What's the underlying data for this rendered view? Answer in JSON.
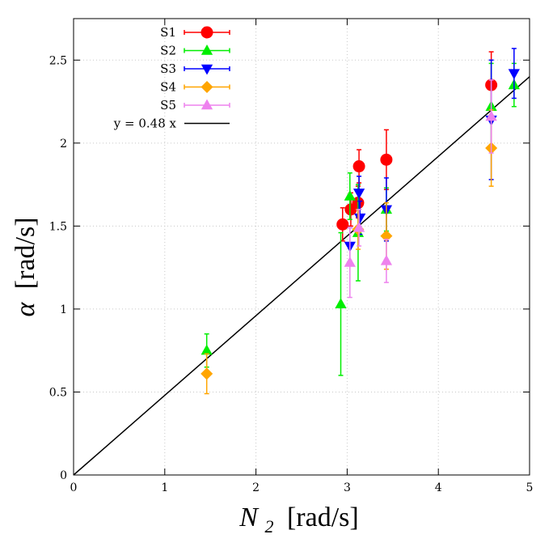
{
  "chart_data": {
    "type": "scatter",
    "xlabel_symbol": "N",
    "xlabel_subscript": "2",
    "xlabel_unit": "[rad/s]",
    "ylabel_symbol": "α",
    "ylabel_unit": "[rad/s]",
    "xlim": [
      0,
      5
    ],
    "ylim": [
      0,
      2.75
    ],
    "x_ticks": [
      0,
      1,
      2,
      3,
      4,
      5
    ],
    "y_ticks": [
      0,
      0.5,
      1,
      1.5,
      2,
      2.5
    ],
    "grid": true,
    "legend_position": "top-left",
    "series": [
      {
        "name": "S1",
        "color": "#ff0000",
        "marker": "circle",
        "points": [
          {
            "x": 2.95,
            "y": 1.51,
            "lo": 1.41,
            "hi": 1.61
          },
          {
            "x": 3.04,
            "y": 1.6,
            "lo": 1.5,
            "hi": 1.7
          },
          {
            "x": 3.12,
            "y": 1.64,
            "lo": 1.55,
            "hi": 1.74
          },
          {
            "x": 3.13,
            "y": 1.86,
            "lo": 1.76,
            "hi": 1.96
          },
          {
            "x": 3.43,
            "y": 1.9,
            "lo": 1.72,
            "hi": 2.08
          },
          {
            "x": 4.58,
            "y": 2.35,
            "lo": 2.15,
            "hi": 2.55
          }
        ]
      },
      {
        "name": "S2",
        "color": "#00ee00",
        "marker": "triangle-up",
        "points": [
          {
            "x": 1.46,
            "y": 0.75,
            "lo": 0.65,
            "hi": 0.85
          },
          {
            "x": 2.93,
            "y": 1.03,
            "lo": 0.6,
            "hi": 1.46
          },
          {
            "x": 3.03,
            "y": 1.68,
            "lo": 1.54,
            "hi": 1.82
          },
          {
            "x": 3.12,
            "y": 1.46,
            "lo": 1.17,
            "hi": 1.75
          },
          {
            "x": 3.43,
            "y": 1.6,
            "lo": 1.47,
            "hi": 1.73
          },
          {
            "x": 4.58,
            "y": 2.22,
            "lo": 1.96,
            "hi": 2.48
          },
          {
            "x": 4.83,
            "y": 2.35,
            "lo": 2.22,
            "hi": 2.48
          }
        ]
      },
      {
        "name": "S3",
        "color": "#0000ff",
        "marker": "triangle-down",
        "points": [
          {
            "x": 3.03,
            "y": 1.38,
            "lo": 1.27,
            "hi": 1.49
          },
          {
            "x": 3.13,
            "y": 1.7,
            "lo": 1.6,
            "hi": 1.8
          },
          {
            "x": 3.14,
            "y": 1.55,
            "lo": 1.45,
            "hi": 1.65
          },
          {
            "x": 3.43,
            "y": 1.6,
            "lo": 1.41,
            "hi": 1.79
          },
          {
            "x": 4.58,
            "y": 2.14,
            "lo": 1.78,
            "hi": 2.5
          },
          {
            "x": 4.83,
            "y": 2.42,
            "lo": 2.27,
            "hi": 2.57
          }
        ]
      },
      {
        "name": "S4",
        "color": "#ffa500",
        "marker": "diamond",
        "points": [
          {
            "x": 1.46,
            "y": 0.61,
            "lo": 0.49,
            "hi": 0.73
          },
          {
            "x": 3.12,
            "y": 1.48,
            "lo": 1.36,
            "hi": 1.6
          },
          {
            "x": 3.43,
            "y": 1.44,
            "lo": 1.24,
            "hi": 1.64
          },
          {
            "x": 4.58,
            "y": 1.97,
            "lo": 1.74,
            "hi": 2.2
          }
        ]
      },
      {
        "name": "S5",
        "color": "#ee82ee",
        "marker": "triangle-up",
        "points": [
          {
            "x": 3.03,
            "y": 1.28,
            "lo": 1.07,
            "hi": 1.49
          },
          {
            "x": 3.13,
            "y": 1.49,
            "lo": 1.38,
            "hi": 1.6
          },
          {
            "x": 3.43,
            "y": 1.29,
            "lo": 1.16,
            "hi": 1.42
          },
          {
            "x": 4.58,
            "y": 2.16,
            "lo": 1.94,
            "hi": 2.38
          }
        ]
      }
    ],
    "fit": {
      "label": "y = 0.48 x",
      "slope": 0.48,
      "color": "#000000"
    }
  }
}
